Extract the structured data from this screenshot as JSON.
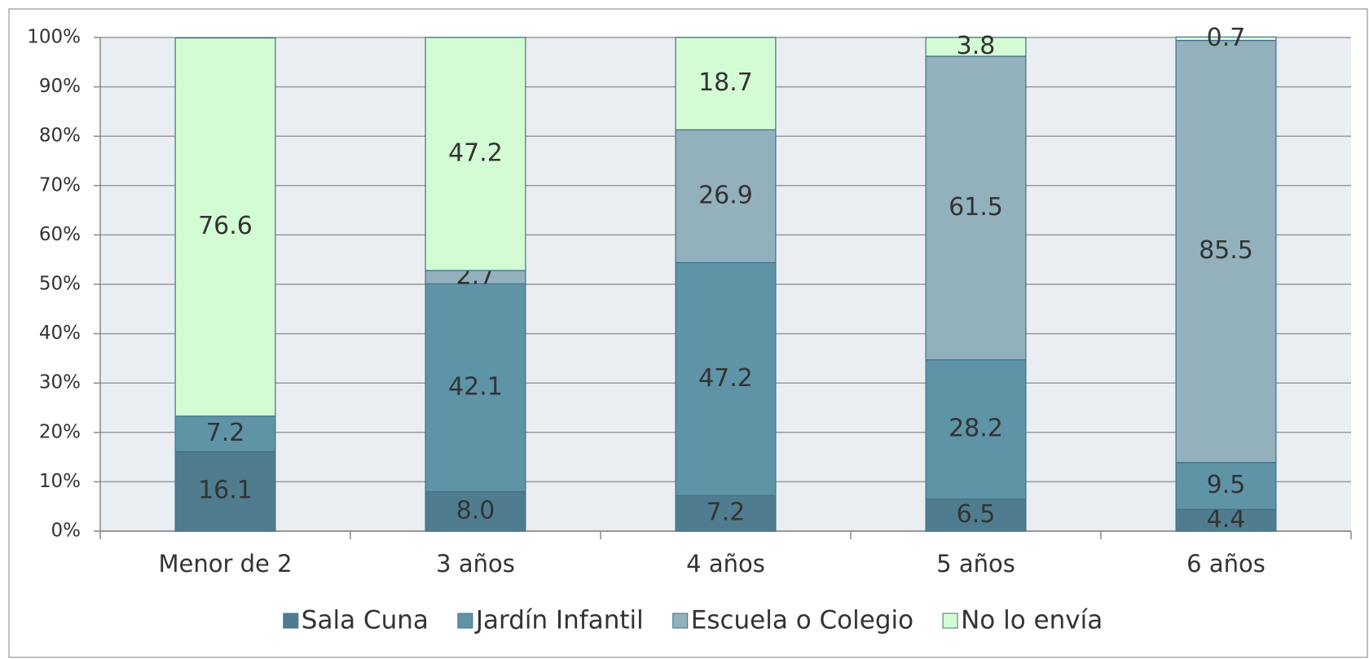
{
  "chart_data": {
    "type": "stacked-bar",
    "categories": [
      "Menor de 2",
      "3 años",
      "4 años",
      "5 años",
      "6 años"
    ],
    "series": [
      {
        "name": "Sala Cuna",
        "color": "#4f7d8f",
        "values": [
          16.1,
          8.0,
          7.2,
          6.5,
          4.4
        ],
        "value_labels": [
          "16.1",
          "8.0",
          "7.2",
          "6.5",
          "4.4"
        ]
      },
      {
        "name": "Jardín Infantil",
        "color": "#5f94a7",
        "values": [
          7.2,
          42.1,
          47.2,
          28.2,
          9.5
        ]
      },
      {
        "name": "Escuela o Colegio",
        "color": "#93b0bd",
        "values": [
          null,
          2.7,
          26.9,
          61.5,
          85.5
        ]
      },
      {
        "name": "No lo envía",
        "color": "#d4fcd4",
        "values": [
          76.6,
          47.2,
          18.7,
          3.8,
          0.7
        ]
      }
    ],
    "ylim": [
      0,
      100
    ],
    "yticks": [
      {
        "value": 0,
        "label": "0%"
      },
      {
        "value": 10,
        "label": "10%"
      },
      {
        "value": 20,
        "label": "20%"
      },
      {
        "value": 30,
        "label": "30%"
      },
      {
        "value": 40,
        "label": "40%"
      },
      {
        "value": 50,
        "label": "50%"
      },
      {
        "value": 60,
        "label": "60%"
      },
      {
        "value": 70,
        "label": "70%"
      },
      {
        "value": 80,
        "label": "80%"
      },
      {
        "value": 90,
        "label": "90%"
      },
      {
        "value": 100,
        "label": "100%"
      }
    ],
    "grid": true,
    "legend": "bottom"
  }
}
